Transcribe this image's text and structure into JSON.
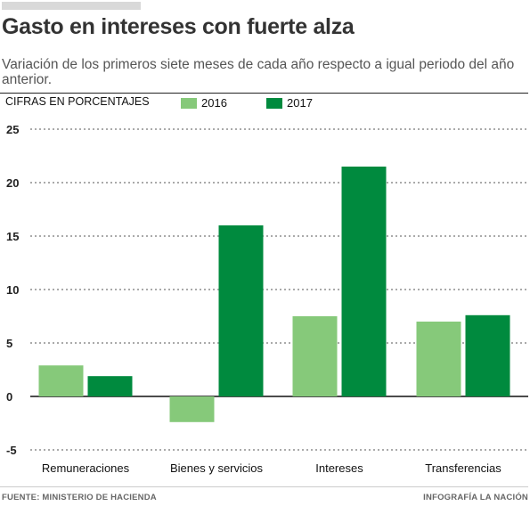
{
  "header": {
    "title": "Gasto en intereses con fuerte alza",
    "subtitle": "Variación de los primeros siete meses de cada año respecto a igual periodo del año anterior."
  },
  "unit_label": "CIFRAS EN PORCENTAJES",
  "footer": {
    "source": "FUENTE: MINISTERIO DE HACIENDA",
    "credit": "INFOGRAFÍA LA NACIÓN"
  },
  "colors": {
    "s2016": "#86c97a",
    "s2017": "#008a3e"
  },
  "chart_data": {
    "type": "bar",
    "title": "Gasto en intereses con fuerte alza",
    "subtitle": "Variación de los primeros siete meses de cada año respecto a igual periodo del año anterior.",
    "ylabel": "CIFRAS EN PORCENTAJES",
    "xlabel": "",
    "categories": [
      "Remuneraciones",
      "Bienes y servicios",
      "Intereses",
      "Transferencias"
    ],
    "series": [
      {
        "name": "2016",
        "values": [
          2.9,
          -2.4,
          7.5,
          7.0
        ]
      },
      {
        "name": "2017",
        "values": [
          1.9,
          16.0,
          21.5,
          7.6
        ]
      }
    ],
    "ylim": [
      -5,
      25
    ],
    "yticks": [
      "25",
      "20",
      "15",
      "10",
      "5",
      "0",
      "-5"
    ],
    "grid": true,
    "legend": "top"
  }
}
